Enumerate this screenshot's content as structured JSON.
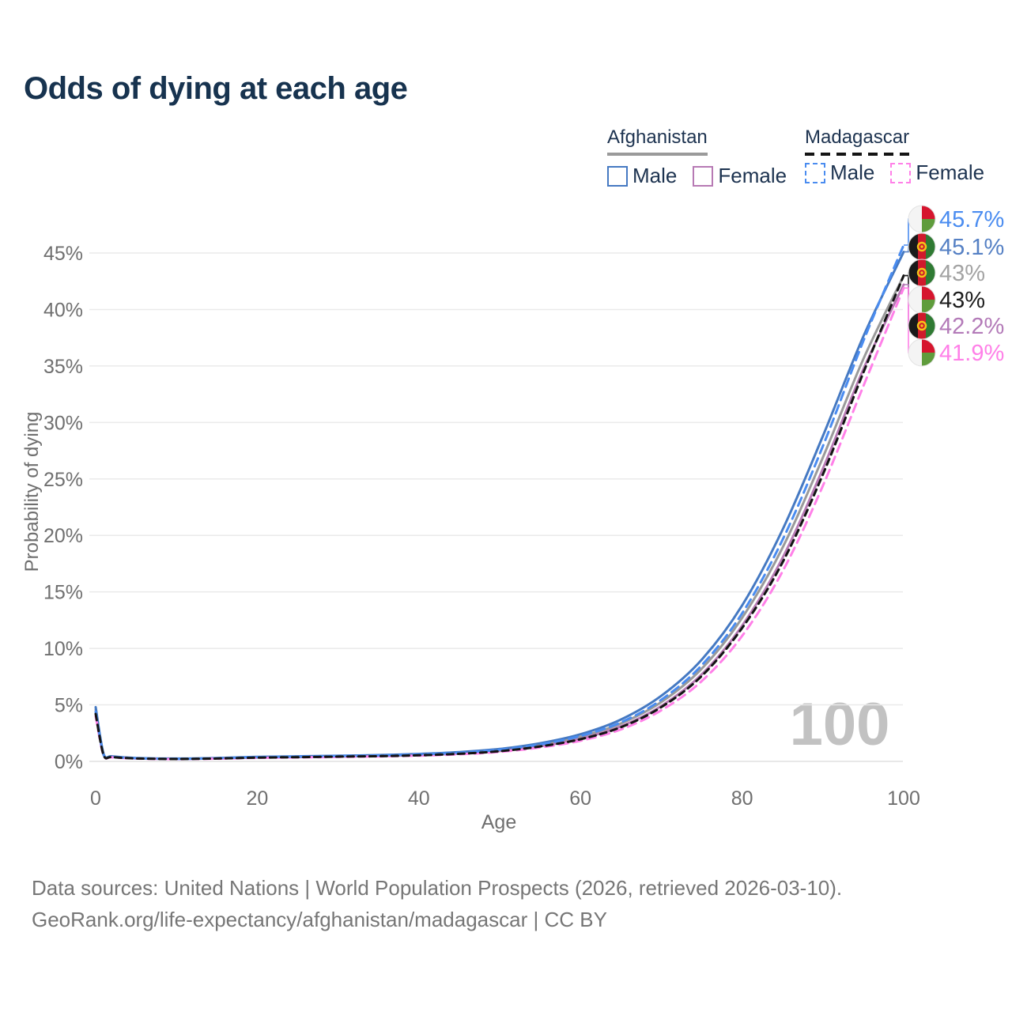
{
  "title": "Odds of dying at each age",
  "watermark": "100",
  "legend": {
    "groups": [
      {
        "name": "Afghanistan",
        "line_style": "solid",
        "underline_color": "#9a9a9a",
        "items": [
          {
            "label": "Male",
            "color": "#4579c2"
          },
          {
            "label": "Female",
            "color": "#b77ab4"
          }
        ]
      },
      {
        "name": "Madagascar",
        "line_style": "dashed",
        "underline_color": "#141414",
        "items": [
          {
            "label": "Male",
            "color": "#4a8cf0"
          },
          {
            "label": "Female",
            "color": "#ff80e8"
          }
        ]
      }
    ]
  },
  "footer": {
    "line1": "Data sources: United Nations | World Population Prospects (2026, retrieved 2026-03-10).",
    "line2": "GeoRank.org/life-expectancy/afghanistan/madagascar | CC BY"
  },
  "chart_data": {
    "type": "line",
    "title": "Odds of dying at each age",
    "xlabel": "Age",
    "ylabel": "Probability of dying",
    "xlim": [
      0,
      100
    ],
    "ylim_percent": [
      0,
      47
    ],
    "grid": "horizontal-only",
    "x_ticks": [
      0,
      20,
      40,
      60,
      80,
      100
    ],
    "y_ticks_percent": [
      0,
      5,
      10,
      15,
      20,
      25,
      30,
      35,
      40,
      45
    ],
    "ages": [
      0,
      1,
      2,
      5,
      10,
      15,
      20,
      25,
      30,
      35,
      40,
      45,
      50,
      55,
      60,
      65,
      70,
      75,
      80,
      85,
      90,
      95,
      100
    ],
    "series": [
      {
        "name": "Afghanistan All",
        "country": "afghanistan",
        "sex": "all",
        "color": "#9a9a9a",
        "dash": "solid",
        "width": 3,
        "values_percent": [
          4.6,
          0.58,
          0.42,
          0.28,
          0.23,
          0.28,
          0.36,
          0.41,
          0.46,
          0.51,
          0.6,
          0.74,
          1.0,
          1.46,
          2.18,
          3.35,
          5.25,
          8.2,
          12.7,
          18.9,
          26.9,
          35.6,
          43.0
        ]
      },
      {
        "name": "Afghanistan Female",
        "country": "afghanistan",
        "sex": "female",
        "color": "#b77ab4",
        "dash": "solid",
        "width": 3,
        "values_percent": [
          4.4,
          0.54,
          0.4,
          0.27,
          0.22,
          0.26,
          0.33,
          0.37,
          0.42,
          0.47,
          0.55,
          0.68,
          0.91,
          1.34,
          2.0,
          3.1,
          4.9,
          7.7,
          12.0,
          18.0,
          25.9,
          34.7,
          42.2
        ]
      },
      {
        "name": "Afghanistan Male",
        "country": "afghanistan",
        "sex": "male",
        "color": "#4579c2",
        "dash": "solid",
        "width": 3,
        "values_percent": [
          4.8,
          0.62,
          0.45,
          0.3,
          0.25,
          0.3,
          0.4,
          0.45,
          0.5,
          0.56,
          0.66,
          0.82,
          1.1,
          1.6,
          2.4,
          3.7,
          5.8,
          9.0,
          13.8,
          20.5,
          28.8,
          37.6,
          45.1
        ]
      },
      {
        "name": "Madagascar Female",
        "country": "madagascar",
        "sex": "female",
        "color": "#ff80e8",
        "dash": "11 7",
        "width": 3,
        "values_percent": [
          4.0,
          0.48,
          0.36,
          0.25,
          0.2,
          0.24,
          0.31,
          0.35,
          0.39,
          0.44,
          0.51,
          0.63,
          0.84,
          1.23,
          1.83,
          2.83,
          4.52,
          7.1,
          11.1,
          16.8,
          24.4,
          33.2,
          41.9
        ]
      },
      {
        "name": "Madagascar Male",
        "country": "madagascar",
        "sex": "male",
        "color": "#4a8cf0",
        "dash": "11 7",
        "width": 3,
        "values_percent": [
          4.4,
          0.55,
          0.4,
          0.28,
          0.22,
          0.28,
          0.38,
          0.43,
          0.48,
          0.53,
          0.62,
          0.77,
          1.03,
          1.5,
          2.25,
          3.45,
          5.45,
          8.5,
          13.1,
          19.6,
          27.9,
          37.2,
          45.7
        ]
      },
      {
        "name": "Madagascar All",
        "country": "madagascar",
        "sex": "all",
        "color": "#141414",
        "dash": "8 6",
        "width": 3,
        "values_percent": [
          4.2,
          0.51,
          0.38,
          0.26,
          0.21,
          0.25,
          0.33,
          0.37,
          0.42,
          0.46,
          0.54,
          0.67,
          0.9,
          1.32,
          1.96,
          3.02,
          4.8,
          7.55,
          11.8,
          17.6,
          25.4,
          34.4,
          43.0
        ]
      }
    ],
    "end_labels": [
      {
        "text": "45.7%",
        "value_percent": 45.7,
        "series": "Madagascar Male",
        "flag": "madagascar",
        "color": "#4a8cf0"
      },
      {
        "text": "45.1%",
        "value_percent": 45.1,
        "series": "Afghanistan Male",
        "flag": "afghanistan",
        "color": "#5580c4"
      },
      {
        "text": "43%",
        "value_percent": 43.0,
        "series": "Afghanistan All",
        "flag": "afghanistan",
        "color": "#a3a3a3"
      },
      {
        "text": "43%",
        "value_percent": 43.0,
        "series": "Madagascar All",
        "flag": "madagascar",
        "color": "#1c1c1c"
      },
      {
        "text": "42.2%",
        "value_percent": 42.2,
        "series": "Afghanistan Female",
        "flag": "afghanistan",
        "color": "#b37ab8"
      },
      {
        "text": "41.9%",
        "value_percent": 41.9,
        "series": "Madagascar Female",
        "flag": "madagascar",
        "color": "#ff80e8"
      }
    ],
    "flag_colors": {
      "afghanistan": {
        "black": "#1a1a1a",
        "red": "#cf1a2c",
        "green": "#2f7a33",
        "gold": "#f5c518"
      },
      "madagascar": {
        "white": "#f4f4f4",
        "red": "#d6152e",
        "green": "#5f9c3c"
      }
    }
  }
}
